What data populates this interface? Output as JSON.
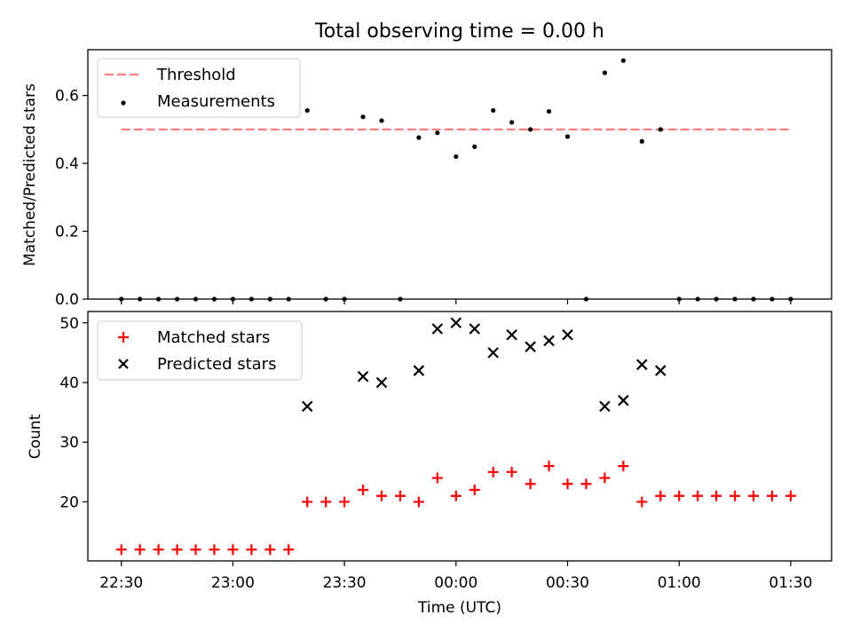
{
  "title": "Total observing time = 0.00 h",
  "chart_data": [
    {
      "type": "scatter",
      "ylabel": "Matched/Predicted stars",
      "xlabel": "",
      "ylim": [
        0,
        0.735
      ],
      "yticks": [
        0.0,
        0.2,
        0.4,
        0.6
      ],
      "ytick_labels": [
        "0.0",
        "0.2",
        "0.4",
        "0.6"
      ],
      "legend_position": "top-left",
      "threshold": {
        "name": "Threshold",
        "value": 0.5,
        "x_start": "22:30",
        "x_end": "01:30",
        "color": "#ff7f7f",
        "style": "dashed"
      },
      "series": [
        {
          "name": "Measurements",
          "color": "#000000",
          "marker": "dot",
          "x": [
            "22:30",
            "22:35",
            "22:40",
            "22:45",
            "22:50",
            "22:55",
            "23:00",
            "23:05",
            "23:10",
            "23:15",
            "23:20",
            "23:25",
            "23:30",
            "23:35",
            "23:40",
            "23:45",
            "23:50",
            "23:55",
            "00:00",
            "00:05",
            "00:10",
            "00:15",
            "00:20",
            "00:25",
            "00:30",
            "00:35",
            "00:40",
            "00:45",
            "00:50",
            "00:55",
            "01:00",
            "01:05",
            "01:10",
            "01:15",
            "01:20",
            "01:25",
            "01:30"
          ],
          "values": [
            0,
            0,
            0,
            0,
            0,
            0,
            0,
            0,
            0,
            0,
            0.556,
            0,
            0,
            0.537,
            0.526,
            0,
            0.476,
            0.49,
            0.42,
            0.449,
            0.556,
            0.521,
            0.5,
            0.553,
            0.479,
            0,
            0.667,
            0.703,
            0.465,
            0.5,
            0,
            0,
            0,
            0,
            0,
            0,
            0
          ]
        }
      ]
    },
    {
      "type": "scatter",
      "ylabel": "Count",
      "xlabel": "Time (UTC)",
      "ylim": [
        10.1,
        51.9
      ],
      "yticks": [
        20,
        30,
        40,
        50
      ],
      "ytick_labels": [
        "20",
        "30",
        "40",
        "50"
      ],
      "xlim": [
        "22:21",
        "01:41"
      ],
      "xticks": [
        "22:30",
        "23:00",
        "23:30",
        "00:00",
        "00:30",
        "01:00",
        "01:30"
      ],
      "xtick_labels": [
        "22:30",
        "23:00",
        "23:30",
        "00:00",
        "00:30",
        "01:00",
        "01:30"
      ],
      "legend_position": "top-left",
      "series": [
        {
          "name": "Matched stars",
          "color": "#ff0000",
          "marker": "plus",
          "x": [
            "22:30",
            "22:35",
            "22:40",
            "22:45",
            "22:50",
            "22:55",
            "23:00",
            "23:05",
            "23:10",
            "23:15",
            "23:20",
            "23:25",
            "23:30",
            "23:35",
            "23:40",
            "23:45",
            "23:50",
            "23:55",
            "00:00",
            "00:05",
            "00:10",
            "00:15",
            "00:20",
            "00:25",
            "00:30",
            "00:35",
            "00:40",
            "00:45",
            "00:50",
            "00:55",
            "01:00",
            "01:05",
            "01:10",
            "01:15",
            "01:20",
            "01:25",
            "01:30"
          ],
          "values": [
            12,
            12,
            12,
            12,
            12,
            12,
            12,
            12,
            12,
            12,
            20,
            20,
            20,
            22,
            21,
            21,
            20,
            24,
            21,
            22,
            25,
            25,
            23,
            26,
            23,
            23,
            24,
            26,
            20,
            21,
            21,
            21,
            21,
            21,
            21,
            21,
            21
          ]
        },
        {
          "name": "Predicted stars",
          "color": "#000000",
          "marker": "x",
          "x": [
            "23:20",
            "23:35",
            "23:40",
            "23:50",
            "23:55",
            "00:00",
            "00:05",
            "00:10",
            "00:15",
            "00:20",
            "00:25",
            "00:30",
            "00:40",
            "00:45",
            "00:50",
            "00:55"
          ],
          "values": [
            36,
            41,
            40,
            42,
            49,
            50,
            49,
            45,
            48,
            46,
            47,
            48,
            36,
            37,
            43,
            42
          ]
        }
      ]
    }
  ]
}
